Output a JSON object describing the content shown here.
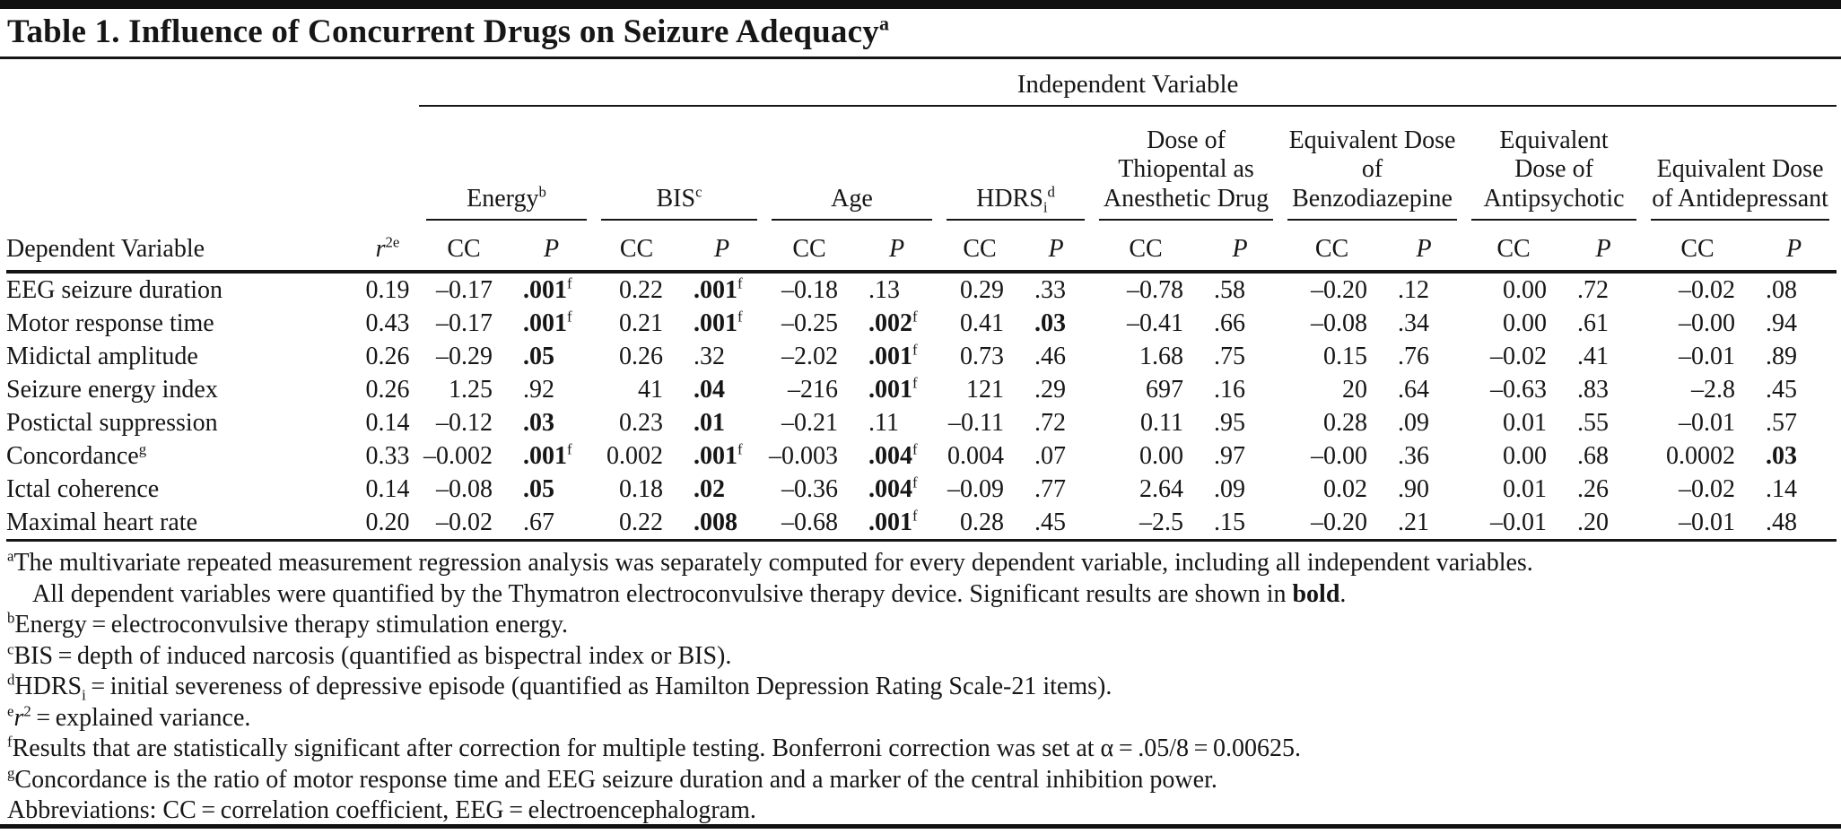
{
  "colors": {
    "text": "#161616",
    "rule": "#161616",
    "top_bar": "#111111",
    "background": "#ffffff"
  },
  "title": {
    "text": "Table 1. Influence of Concurrent Drugs on Seizure Adequacy",
    "marker": "a"
  },
  "table": {
    "spanner": "Independent Variable",
    "row_header": "Dependent Variable",
    "r2_header": {
      "base": "r",
      "sup": "2e"
    },
    "cc_label": "CC",
    "p_label": "P",
    "groups": [
      {
        "id": "energy",
        "label": "Energy",
        "sup": "b"
      },
      {
        "id": "bis",
        "label": "BIS",
        "sup": "c"
      },
      {
        "id": "age",
        "label": "Age"
      },
      {
        "id": "hdrs",
        "label": "HDRS",
        "sub": "i",
        "sup": "d"
      },
      {
        "id": "thiopental",
        "label": "Dose of Thiopental as Anesthetic Drug"
      },
      {
        "id": "benzodiazepine",
        "label": "Equivalent Dose of Benzodiazepine"
      },
      {
        "id": "antipsychotic",
        "label": "Equivalent Dose of Antipsychotic"
      },
      {
        "id": "antidepressant",
        "label": "Equivalent Dose of Antidepressant"
      }
    ],
    "rows": [
      {
        "name": "EEG seizure duration",
        "r2": "0.19",
        "cells": [
          {
            "cc": "–0.17",
            "p": ".001",
            "pb": true,
            "pf": "f"
          },
          {
            "cc": "0.22",
            "p": ".001",
            "pb": true,
            "pf": "f"
          },
          {
            "cc": "–0.18",
            "p": ".13"
          },
          {
            "cc": "0.29",
            "p": ".33"
          },
          {
            "cc": "–0.78",
            "p": ".58"
          },
          {
            "cc": "–0.20",
            "p": ".12"
          },
          {
            "cc": "0.00",
            "p": ".72"
          },
          {
            "cc": "–0.02",
            "p": ".08"
          }
        ]
      },
      {
        "name": "Motor response time",
        "r2": "0.43",
        "cells": [
          {
            "cc": "–0.17",
            "p": ".001",
            "pb": true,
            "pf": "f"
          },
          {
            "cc": "0.21",
            "p": ".001",
            "pb": true,
            "pf": "f"
          },
          {
            "cc": "–0.25",
            "p": ".002",
            "pb": true,
            "pf": "f"
          },
          {
            "cc": "0.41",
            "p": ".03",
            "pb": true
          },
          {
            "cc": "–0.41",
            "p": ".66"
          },
          {
            "cc": "–0.08",
            "p": ".34"
          },
          {
            "cc": "0.00",
            "p": ".61"
          },
          {
            "cc": "–0.00",
            "p": ".94"
          }
        ]
      },
      {
        "name": "Midictal amplitude",
        "r2": "0.26",
        "cells": [
          {
            "cc": "–0.29",
            "p": ".05",
            "pb": true
          },
          {
            "cc": "0.26",
            "p": ".32"
          },
          {
            "cc": "–2.02",
            "p": ".001",
            "pb": true,
            "pf": "f"
          },
          {
            "cc": "0.73",
            "p": ".46"
          },
          {
            "cc": "1.68",
            "p": ".75"
          },
          {
            "cc": "0.15",
            "p": ".76"
          },
          {
            "cc": "–0.02",
            "p": ".41"
          },
          {
            "cc": "–0.01",
            "p": ".89"
          }
        ]
      },
      {
        "name": "Seizure energy index",
        "r2": "0.26",
        "cells": [
          {
            "cc": "1.25",
            "p": ".92"
          },
          {
            "cc": "41",
            "p": ".04",
            "pb": true
          },
          {
            "cc": "–216",
            "p": ".001",
            "pb": true,
            "pf": "f"
          },
          {
            "cc": "121",
            "p": ".29"
          },
          {
            "cc": "697",
            "p": ".16"
          },
          {
            "cc": "20",
            "p": ".64"
          },
          {
            "cc": "–0.63",
            "p": ".83"
          },
          {
            "cc": "–2.8",
            "p": ".45"
          }
        ]
      },
      {
        "name": "Postictal suppression",
        "r2": "0.14",
        "cells": [
          {
            "cc": "–0.12",
            "p": ".03",
            "pb": true
          },
          {
            "cc": "0.23",
            "p": ".01",
            "pb": true
          },
          {
            "cc": "–0.21",
            "p": ".11"
          },
          {
            "cc": "–0.11",
            "p": ".72"
          },
          {
            "cc": "0.11",
            "p": ".95"
          },
          {
            "cc": "0.28",
            "p": ".09"
          },
          {
            "cc": "0.01",
            "p": ".55"
          },
          {
            "cc": "–0.01",
            "p": ".57"
          }
        ]
      },
      {
        "name": "Concordance",
        "sup": "g",
        "r2": "0.33",
        "cells": [
          {
            "cc": "–0.002",
            "p": ".001",
            "pb": true,
            "pf": "f"
          },
          {
            "cc": "0.002",
            "p": ".001",
            "pb": true,
            "pf": "f"
          },
          {
            "cc": "–0.003",
            "p": ".004",
            "pb": true,
            "pf": "f"
          },
          {
            "cc": "0.004",
            "p": ".07"
          },
          {
            "cc": "0.00",
            "p": ".97"
          },
          {
            "cc": "–0.00",
            "p": ".36"
          },
          {
            "cc": "0.00",
            "p": ".68"
          },
          {
            "cc": "0.0002",
            "p": ".03",
            "pb": true
          }
        ]
      },
      {
        "name": "Ictal coherence",
        "r2": "0.14",
        "cells": [
          {
            "cc": "–0.08",
            "p": ".05",
            "pb": true
          },
          {
            "cc": "0.18",
            "p": ".02",
            "pb": true
          },
          {
            "cc": "–0.36",
            "p": ".004",
            "pb": true,
            "pf": "f"
          },
          {
            "cc": "–0.09",
            "p": ".77"
          },
          {
            "cc": "2.64",
            "p": ".09"
          },
          {
            "cc": "0.02",
            "p": ".90"
          },
          {
            "cc": "0.01",
            "p": ".26"
          },
          {
            "cc": "–0.02",
            "p": ".14"
          }
        ]
      },
      {
        "name": "Maximal heart rate",
        "r2": "0.20",
        "cells": [
          {
            "cc": "–0.02",
            "p": ".67"
          },
          {
            "cc": "0.22",
            "p": ".008",
            "pb": true
          },
          {
            "cc": "–0.68",
            "p": ".001",
            "pb": true,
            "pf": "f"
          },
          {
            "cc": "0.28",
            "p": ".45"
          },
          {
            "cc": "–2.5",
            "p": ".15"
          },
          {
            "cc": "–0.20",
            "p": ".21"
          },
          {
            "cc": "–0.01",
            "p": ".20"
          },
          {
            "cc": "–0.01",
            "p": ".48"
          }
        ]
      }
    ]
  },
  "footnotes": [
    {
      "marker": "a",
      "name": "footnote-a-line1",
      "segments": [
        {
          "t": "text",
          "v": "The multivariate repeated measurement regression analysis was separately computed for every dependent variable, including all independent variables."
        }
      ]
    },
    {
      "name": "footnote-a-line2",
      "indent": true,
      "segments": [
        {
          "t": "text",
          "v": "All dependent variables were quantified by the Thymatron electroconvulsive therapy device. Significant results are shown in "
        },
        {
          "t": "bold",
          "v": "bold"
        },
        {
          "t": "text",
          "v": "."
        }
      ]
    },
    {
      "marker": "b",
      "name": "footnote-b",
      "segments": [
        {
          "t": "text",
          "v": "Energy = electroconvulsive therapy stimulation energy."
        }
      ]
    },
    {
      "marker": "c",
      "name": "footnote-c",
      "segments": [
        {
          "t": "text",
          "v": "BIS = depth of induced narcosis (quantified as bispectral index or BIS)."
        }
      ]
    },
    {
      "marker": "d",
      "name": "footnote-d",
      "segments": [
        {
          "t": "text",
          "v": "HDRS"
        },
        {
          "t": "sub",
          "v": "i"
        },
        {
          "t": "text",
          "v": " = initial severeness of depressive episode (quantified as Hamilton Depression Rating Scale-21 items)."
        }
      ]
    },
    {
      "marker": "e",
      "name": "footnote-e",
      "segments": [
        {
          "t": "italic",
          "v": "r"
        },
        {
          "t": "sup",
          "v": "2"
        },
        {
          "t": "text",
          "v": " = explained variance."
        }
      ]
    },
    {
      "marker": "f",
      "name": "footnote-f",
      "segments": [
        {
          "t": "text",
          "v": "Results that are statistically significant after correction for multiple testing. Bonferroni correction was set at α = .05/8 = 0.00625."
        }
      ]
    },
    {
      "marker": "g",
      "name": "footnote-g",
      "segments": [
        {
          "t": "text",
          "v": "Concordance is the ratio of motor response time and EEG seizure duration and a marker of the central inhibition power."
        }
      ]
    },
    {
      "name": "abbreviations-note",
      "segments": [
        {
          "t": "text",
          "v": "Abbreviations: CC = correlation coefficient, EEG = electroencephalogram."
        }
      ]
    }
  ]
}
